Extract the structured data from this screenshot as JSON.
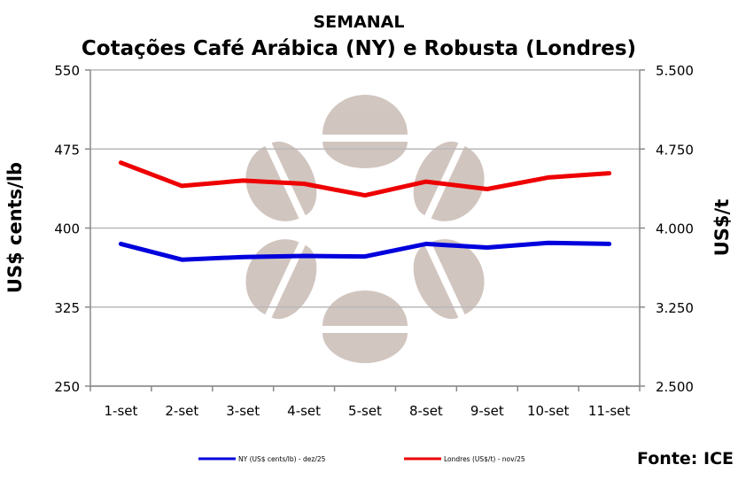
{
  "chart_data": {
    "type": "line",
    "supertitle": "SEMANAL",
    "title": "Cotações Café Arábica (NY) e Robusta (Londres)",
    "categories": [
      "1-set",
      "2-set",
      "3-set",
      "4-set",
      "5-set",
      "8-set",
      "9-set",
      "10-set",
      "11-set"
    ],
    "y_left": {
      "label": "US$ cents/lb",
      "ylim": [
        250,
        550
      ],
      "ticks": [
        "250",
        "325",
        "400",
        "475",
        "550"
      ]
    },
    "y_right": {
      "label": "US$/t",
      "ylim": [
        2500,
        5500
      ],
      "ticks": [
        "2.500",
        "3.250",
        "4.000",
        "4.750",
        "5.500"
      ]
    },
    "series": [
      {
        "name": "NY (US$ cents/lb) - dez/25",
        "axis": "left",
        "color": "#0000dd",
        "values": [
          385,
          370,
          372.5,
          373.5,
          373,
          385,
          381.5,
          386,
          385
        ]
      },
      {
        "name": "Londres (US$/t) - nov/25",
        "axis": "right",
        "color": "#ee0000",
        "values": [
          4620,
          4400,
          4450,
          4420,
          4310,
          4440,
          4370,
          4480,
          4520
        ]
      }
    ],
    "grid": true,
    "legend_position": "bottom",
    "source": "Fonte: ICE"
  }
}
